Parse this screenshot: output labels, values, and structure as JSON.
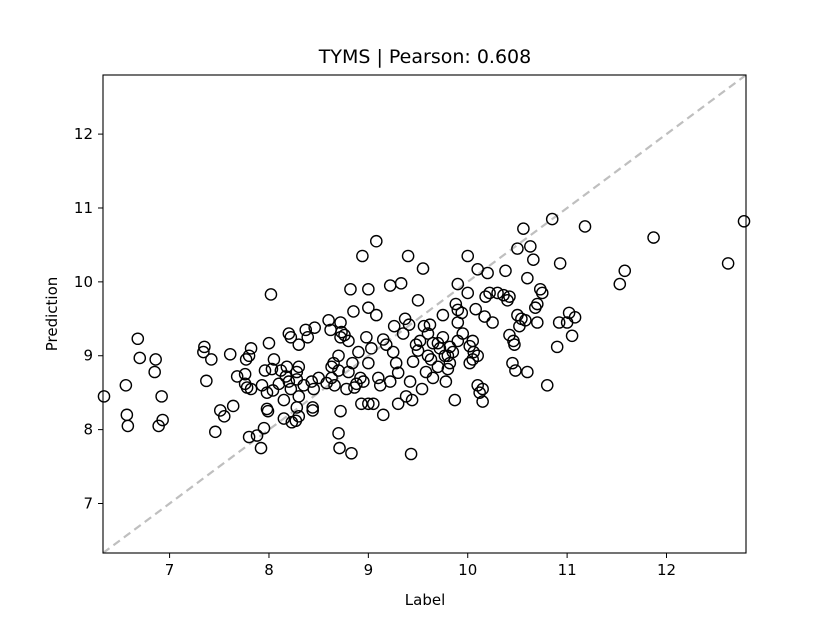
{
  "chart_data": {
    "type": "scatter",
    "title": "TYMS  |  Pearson: 0.608",
    "xlabel": "Label",
    "ylabel": "Prediction",
    "xlim": [
      6.33,
      12.8
    ],
    "ylim": [
      6.33,
      12.8
    ],
    "xticks": [
      7,
      8,
      9,
      10,
      11,
      12
    ],
    "yticks": [
      7,
      8,
      9,
      10,
      11,
      12
    ],
    "grid": false,
    "reference_line": {
      "style": "dashed",
      "color": "#bfbfbf",
      "from": [
        6.33,
        6.33
      ],
      "to": [
        12.8,
        12.8
      ]
    },
    "marker": {
      "shape": "circle",
      "fill": "none",
      "edge_color": "#000000"
    },
    "points": [
      [
        6.34,
        8.45
      ],
      [
        6.56,
        8.6
      ],
      [
        6.57,
        8.2
      ],
      [
        6.58,
        8.05
      ],
      [
        6.68,
        9.23
      ],
      [
        6.7,
        8.97
      ],
      [
        6.86,
        8.95
      ],
      [
        6.85,
        8.78
      ],
      [
        6.89,
        8.05
      ],
      [
        6.92,
        8.45
      ],
      [
        6.93,
        8.13
      ],
      [
        7.35,
        9.12
      ],
      [
        7.34,
        9.05
      ],
      [
        7.37,
        8.66
      ],
      [
        7.42,
        8.95
      ],
      [
        7.46,
        7.97
      ],
      [
        7.51,
        8.26
      ],
      [
        7.55,
        8.18
      ],
      [
        7.61,
        9.02
      ],
      [
        7.64,
        8.32
      ],
      [
        7.68,
        8.72
      ],
      [
        7.77,
        8.95
      ],
      [
        7.76,
        8.75
      ],
      [
        7.76,
        8.62
      ],
      [
        7.78,
        8.57
      ],
      [
        7.8,
        7.9
      ],
      [
        7.8,
        9.0
      ],
      [
        7.82,
        9.1
      ],
      [
        7.82,
        8.55
      ],
      [
        7.88,
        7.92
      ],
      [
        7.92,
        7.75
      ],
      [
        7.93,
        8.6
      ],
      [
        7.95,
        8.02
      ],
      [
        7.96,
        8.8
      ],
      [
        7.98,
        8.5
      ],
      [
        7.98,
        8.28
      ],
      [
        7.99,
        8.25
      ],
      [
        8.0,
        9.17
      ],
      [
        8.02,
        9.83
      ],
      [
        8.03,
        8.82
      ],
      [
        8.04,
        8.53
      ],
      [
        8.05,
        8.95
      ],
      [
        8.1,
        8.62
      ],
      [
        8.12,
        8.8
      ],
      [
        8.15,
        8.4
      ],
      [
        8.15,
        8.15
      ],
      [
        8.17,
        8.72
      ],
      [
        8.18,
        8.85
      ],
      [
        8.2,
        8.65
      ],
      [
        8.2,
        9.3
      ],
      [
        8.22,
        9.25
      ],
      [
        8.22,
        8.55
      ],
      [
        8.23,
        8.1
      ],
      [
        8.27,
        8.12
      ],
      [
        8.28,
        8.3
      ],
      [
        8.28,
        8.68
      ],
      [
        8.28,
        8.78
      ],
      [
        8.3,
        8.85
      ],
      [
        8.3,
        8.18
      ],
      [
        8.3,
        8.45
      ],
      [
        8.3,
        9.15
      ],
      [
        8.35,
        8.6
      ],
      [
        8.37,
        9.35
      ],
      [
        8.39,
        9.25
      ],
      [
        8.43,
        8.65
      ],
      [
        8.45,
        8.55
      ],
      [
        8.44,
        8.3
      ],
      [
        8.44,
        8.26
      ],
      [
        8.46,
        9.38
      ],
      [
        8.5,
        8.7
      ],
      [
        8.58,
        8.63
      ],
      [
        8.6,
        9.48
      ],
      [
        8.62,
        9.35
      ],
      [
        8.63,
        8.7
      ],
      [
        8.63,
        8.85
      ],
      [
        8.65,
        8.9
      ],
      [
        8.66,
        8.6
      ],
      [
        8.7,
        9.0
      ],
      [
        8.7,
        8.8
      ],
      [
        8.7,
        7.95
      ],
      [
        8.71,
        7.75
      ],
      [
        8.72,
        8.25
      ],
      [
        8.72,
        9.25
      ],
      [
        8.72,
        9.45
      ],
      [
        8.73,
        9.32
      ],
      [
        8.76,
        9.28
      ],
      [
        8.78,
        8.55
      ],
      [
        8.8,
        9.2
      ],
      [
        8.8,
        8.78
      ],
      [
        8.82,
        9.9
      ],
      [
        8.83,
        7.68
      ],
      [
        8.84,
        8.9
      ],
      [
        8.85,
        9.6
      ],
      [
        8.86,
        8.57
      ],
      [
        8.88,
        8.62
      ],
      [
        8.9,
        9.05
      ],
      [
        8.92,
        8.7
      ],
      [
        8.93,
        8.35
      ],
      [
        8.94,
        10.35
      ],
      [
        8.95,
        8.65
      ],
      [
        8.98,
        9.25
      ],
      [
        9.0,
        9.65
      ],
      [
        9.0,
        9.9
      ],
      [
        9.0,
        8.35
      ],
      [
        9.0,
        8.9
      ],
      [
        9.03,
        9.1
      ],
      [
        9.05,
        8.35
      ],
      [
        9.08,
        10.55
      ],
      [
        9.08,
        9.55
      ],
      [
        9.1,
        8.7
      ],
      [
        9.12,
        8.6
      ],
      [
        9.15,
        8.2
      ],
      [
        9.15,
        9.22
      ],
      [
        9.18,
        9.15
      ],
      [
        9.22,
        8.65
      ],
      [
        9.22,
        9.95
      ],
      [
        9.25,
        9.05
      ],
      [
        9.26,
        9.4
      ],
      [
        9.28,
        8.9
      ],
      [
        9.3,
        8.77
      ],
      [
        9.3,
        8.35
      ],
      [
        9.33,
        9.98
      ],
      [
        9.35,
        9.3
      ],
      [
        9.37,
        9.5
      ],
      [
        9.38,
        8.45
      ],
      [
        9.4,
        10.35
      ],
      [
        9.41,
        9.42
      ],
      [
        9.42,
        8.65
      ],
      [
        9.43,
        7.67
      ],
      [
        9.44,
        8.4
      ],
      [
        9.45,
        8.92
      ],
      [
        9.48,
        9.15
      ],
      [
        9.5,
        9.75
      ],
      [
        9.5,
        9.07
      ],
      [
        9.52,
        9.2
      ],
      [
        9.54,
        8.55
      ],
      [
        9.55,
        10.18
      ],
      [
        9.56,
        9.4
      ],
      [
        9.58,
        8.78
      ],
      [
        9.6,
        9.0
      ],
      [
        9.6,
        9.3
      ],
      [
        9.62,
        9.42
      ],
      [
        9.63,
        8.95
      ],
      [
        9.65,
        9.17
      ],
      [
        9.65,
        8.7
      ],
      [
        9.7,
        9.17
      ],
      [
        9.7,
        8.85
      ],
      [
        9.72,
        9.1
      ],
      [
        9.75,
        9.25
      ],
      [
        9.75,
        9.55
      ],
      [
        9.77,
        9.0
      ],
      [
        9.78,
        8.65
      ],
      [
        9.8,
        9.0
      ],
      [
        9.8,
        8.82
      ],
      [
        9.82,
        9.12
      ],
      [
        9.82,
        8.9
      ],
      [
        9.85,
        9.05
      ],
      [
        9.87,
        8.4
      ],
      [
        9.88,
        9.7
      ],
      [
        9.9,
        9.97
      ],
      [
        9.9,
        9.62
      ],
      [
        9.9,
        9.45
      ],
      [
        9.9,
        9.2
      ],
      [
        9.94,
        9.58
      ],
      [
        9.95,
        9.3
      ],
      [
        10.0,
        9.85
      ],
      [
        10.0,
        10.35
      ],
      [
        10.02,
        9.13
      ],
      [
        10.02,
        8.9
      ],
      [
        10.05,
        8.95
      ],
      [
        10.05,
        9.2
      ],
      [
        10.06,
        9.05
      ],
      [
        10.08,
        9.63
      ],
      [
        10.1,
        9.0
      ],
      [
        10.1,
        10.17
      ],
      [
        10.1,
        8.6
      ],
      [
        10.12,
        8.5
      ],
      [
        10.15,
        8.38
      ],
      [
        10.15,
        8.55
      ],
      [
        10.17,
        9.53
      ],
      [
        10.18,
        9.8
      ],
      [
        10.2,
        10.12
      ],
      [
        10.22,
        9.85
      ],
      [
        10.25,
        9.45
      ],
      [
        10.3,
        9.85
      ],
      [
        10.36,
        9.82
      ],
      [
        10.38,
        10.15
      ],
      [
        10.4,
        9.75
      ],
      [
        10.42,
        9.8
      ],
      [
        10.42,
        9.28
      ],
      [
        10.45,
        8.9
      ],
      [
        10.46,
        9.2
      ],
      [
        10.47,
        9.15
      ],
      [
        10.48,
        8.8
      ],
      [
        10.5,
        9.55
      ],
      [
        10.5,
        10.45
      ],
      [
        10.52,
        9.4
      ],
      [
        10.54,
        9.5
      ],
      [
        10.56,
        10.72
      ],
      [
        10.58,
        9.48
      ],
      [
        10.6,
        8.78
      ],
      [
        10.6,
        10.05
      ],
      [
        10.63,
        10.48
      ],
      [
        10.66,
        10.3
      ],
      [
        10.68,
        9.65
      ],
      [
        10.7,
        9.7
      ],
      [
        10.7,
        9.45
      ],
      [
        10.73,
        9.9
      ],
      [
        10.75,
        9.85
      ],
      [
        10.8,
        8.6
      ],
      [
        10.85,
        10.85
      ],
      [
        10.9,
        9.12
      ],
      [
        10.92,
        9.45
      ],
      [
        10.93,
        10.25
      ],
      [
        11.0,
        9.45
      ],
      [
        11.02,
        9.58
      ],
      [
        11.05,
        9.27
      ],
      [
        11.08,
        9.52
      ],
      [
        11.18,
        10.75
      ],
      [
        11.53,
        9.97
      ],
      [
        11.58,
        10.15
      ],
      [
        11.87,
        10.6
      ],
      [
        12.62,
        10.25
      ],
      [
        12.78,
        10.82
      ]
    ]
  }
}
